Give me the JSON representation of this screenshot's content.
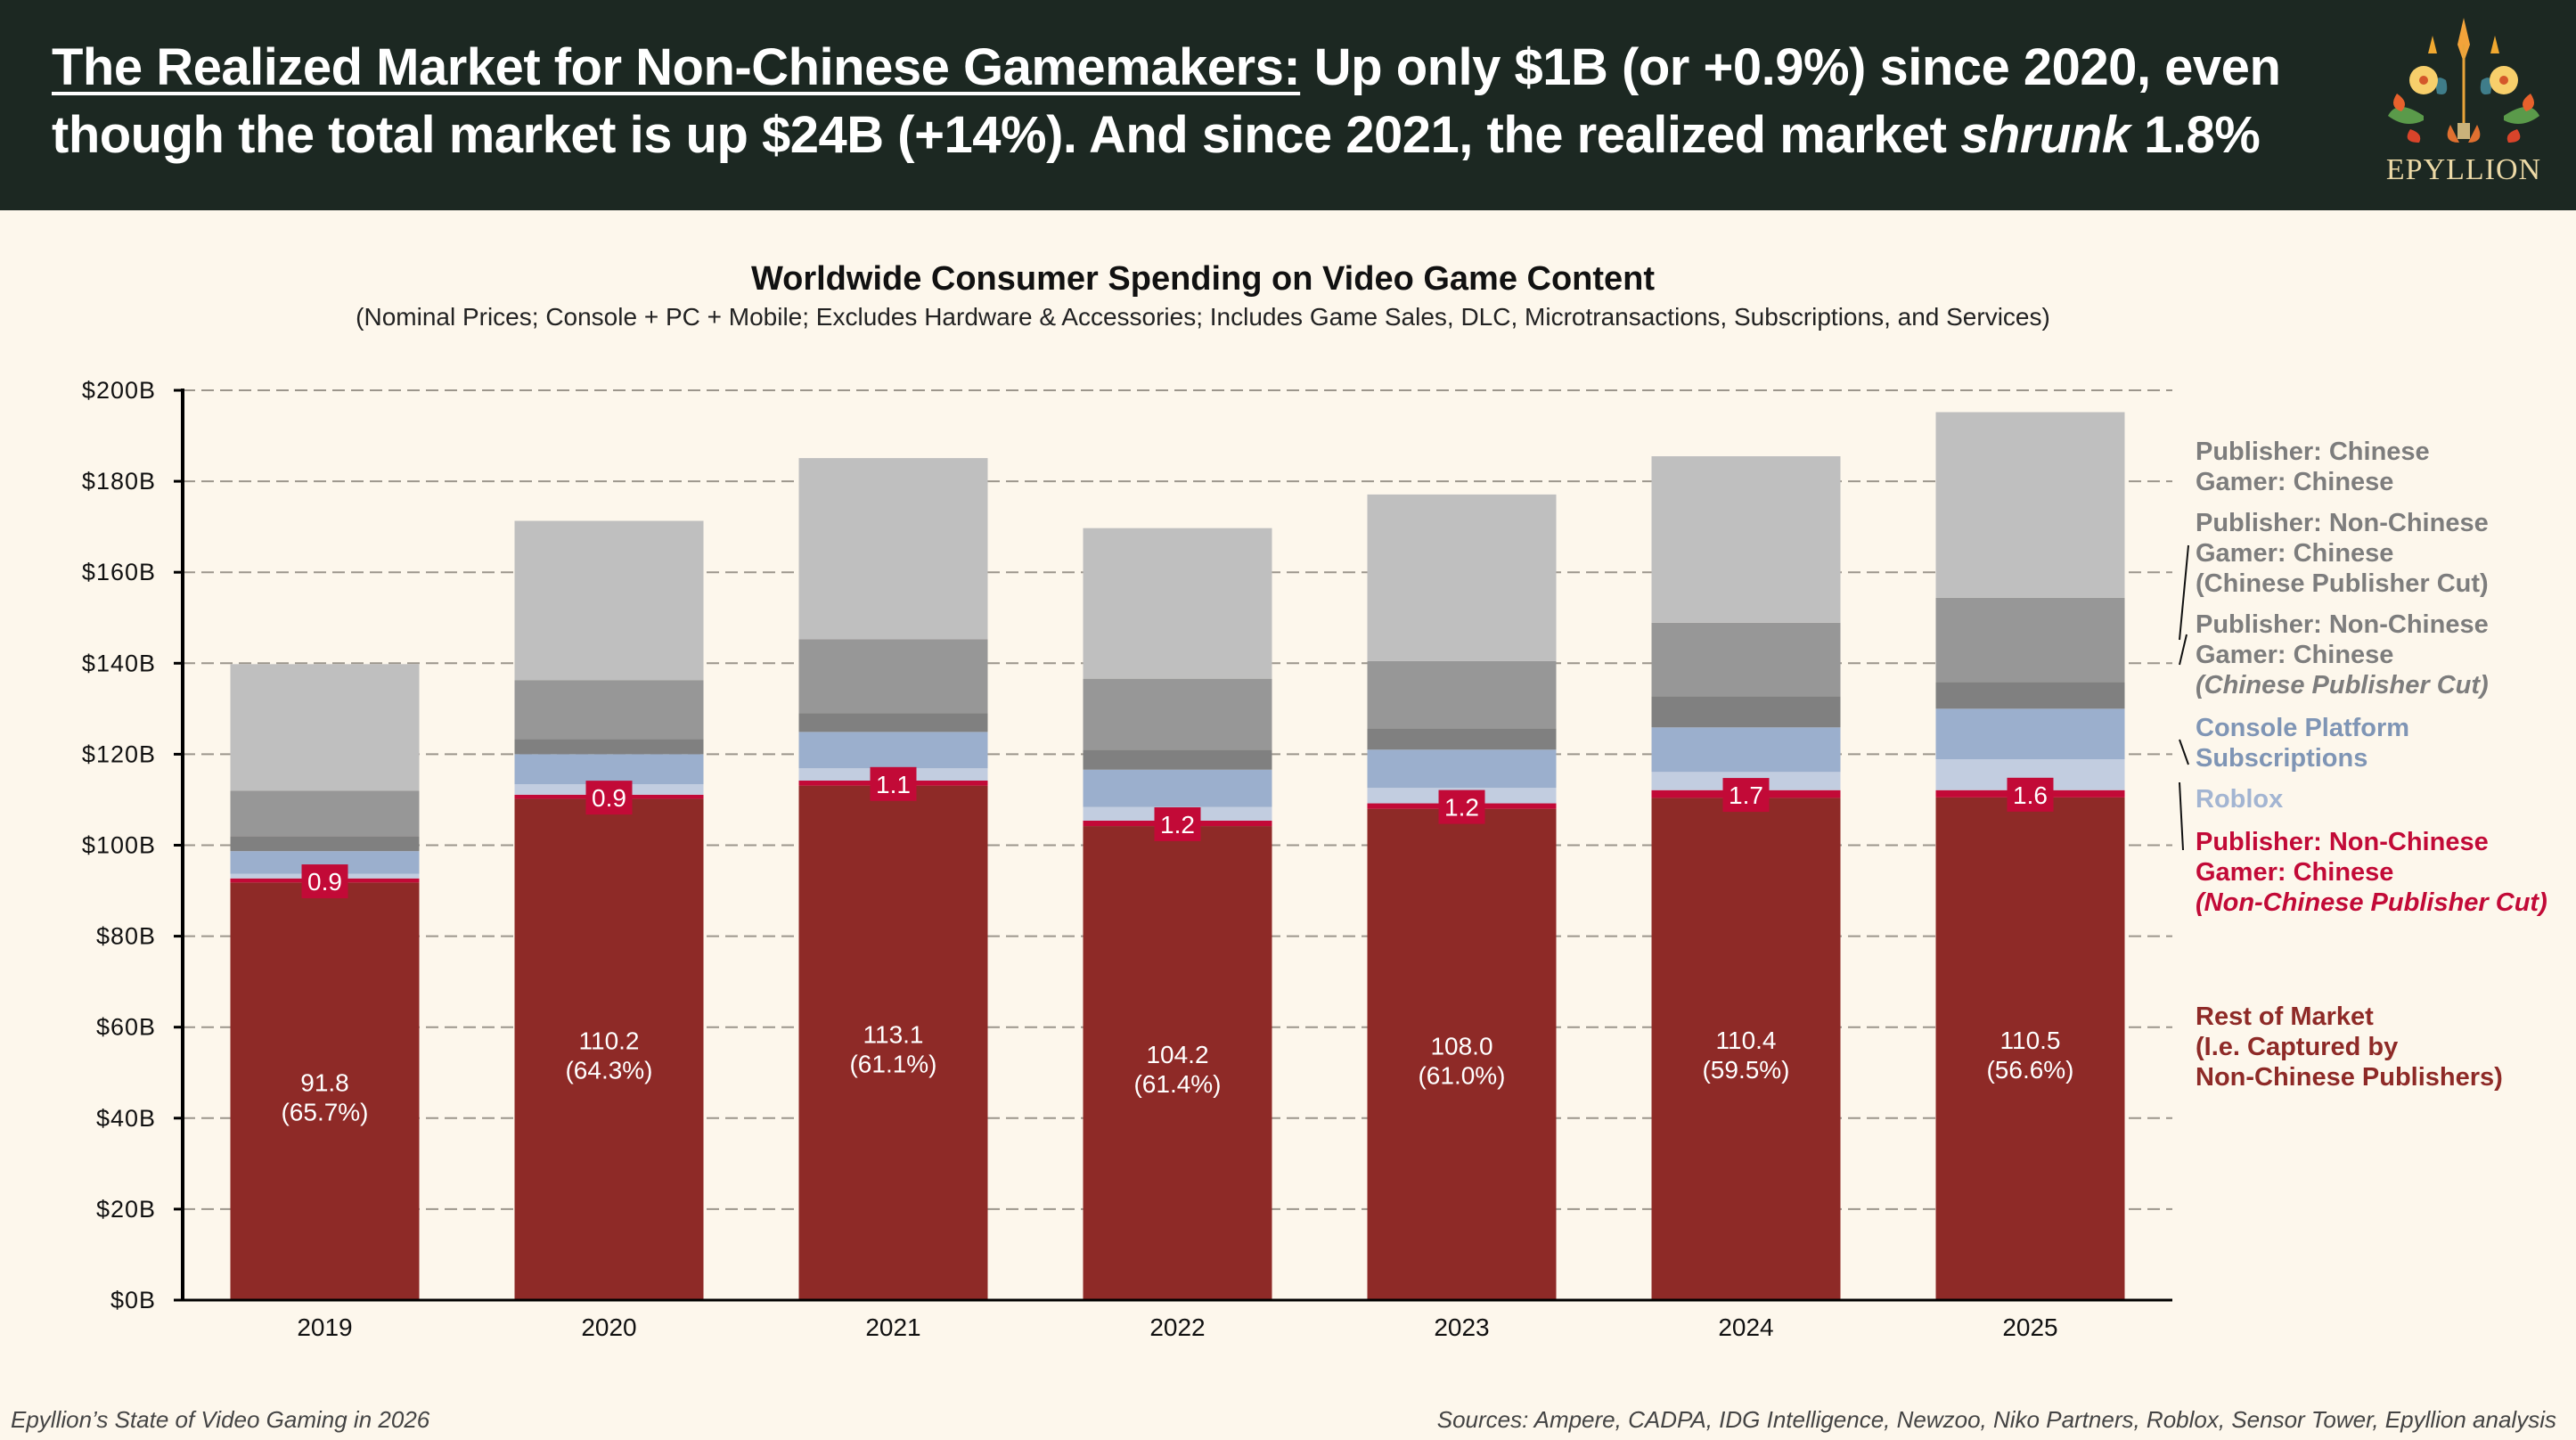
{
  "header": {
    "headline_underlined": "The Realized Market for Non-Chinese Gamemakers:",
    "headline_part1": " Up only $1B (or +0.9%) since 2020, even though the total market is up $24B (+14%). And since 2021, the realized market ",
    "headline_italic": "shrunk",
    "headline_part2": " 1.8%",
    "logo_text": "EPYLLION"
  },
  "footer": {
    "left": "Epyllion’s State of Video Gaming in 2026",
    "right": "Sources: Ampere, CADPA, IDG Intelligence, Newzoo, Niko Partners, Roblox, Sensor Tower, Epyllion analysis"
  },
  "colors": {
    "background": "#fdf7ec",
    "header_bg": "#1c2822",
    "rest_of_market": "#8e2a27",
    "nonchinese_pub_cut": "#c20a37",
    "roblox": "#c2cde0",
    "console_subs": "#9bafcd",
    "chinese_pub_cut_dark": "#808080",
    "chinese_pub_cut_mid": "#979797",
    "chinese_chinese": "#bfbfbf"
  },
  "chart_data": {
    "type": "bar",
    "stacked": true,
    "title": "Worldwide Consumer Spending on Video Game Content",
    "subtitle": "(Nominal Prices; Console + PC + Mobile; Excludes Hardware & Accessories; Includes Game Sales, DLC, Microtransactions, Subscriptions, and Services)",
    "xlabel": "",
    "ylabel": "",
    "categories": [
      "2019",
      "2020",
      "2021",
      "2022",
      "2023",
      "2024",
      "2025"
    ],
    "ylim": [
      0,
      200
    ],
    "yticks": [
      0,
      20,
      40,
      60,
      80,
      100,
      120,
      140,
      160,
      180,
      200
    ],
    "ytick_labels": [
      "$0B",
      "$20B",
      "$40B",
      "$60B",
      "$80B",
      "$100B",
      "$120B",
      "$140B",
      "$160B",
      "$180B",
      "$200B"
    ],
    "grid": "horizontal dashed",
    "legend_position": "right",
    "series": [
      {
        "name": "Rest of Market (I.e. Captured by Non-Chinese Publishers)",
        "color_key": "rest_of_market",
        "values": [
          91.8,
          110.2,
          113.1,
          104.2,
          108.0,
          110.4,
          110.5
        ],
        "share_labels": [
          "(65.7%)",
          "(64.3%)",
          "(61.1%)",
          "(61.4%)",
          "(61.0%)",
          "(59.5%)",
          "(56.6%)"
        ],
        "value_labels": [
          "91.8",
          "110.2",
          "113.1",
          "104.2",
          "108.0",
          "110.4",
          "110.5"
        ]
      },
      {
        "name": "Publisher: Non-Chinese / Gamer: Chinese (Non-Chinese Publisher Cut)",
        "color_key": "nonchinese_pub_cut",
        "values": [
          0.9,
          0.9,
          1.1,
          1.2,
          1.2,
          1.7,
          1.6
        ],
        "value_labels": [
          "0.9",
          "0.9",
          "1.1",
          "1.2",
          "1.2",
          "1.7",
          "1.6"
        ]
      },
      {
        "name": "Roblox",
        "color_key": "roblox",
        "values": [
          1.0,
          2.3,
          2.7,
          3.0,
          3.4,
          4.0,
          6.8
        ]
      },
      {
        "name": "Console Platform Subscriptions",
        "color_key": "console_subs",
        "values": [
          5.0,
          6.6,
          8.0,
          8.2,
          8.4,
          9.8,
          11.1
        ]
      },
      {
        "name": "Publisher: Non-Chinese / Gamer: Chinese (Chinese Publisher Cut)",
        "color_key": "chinese_pub_cut_dark",
        "values": [
          3.3,
          3.3,
          4.1,
          4.4,
          4.7,
          6.8,
          5.9
        ]
      },
      {
        "name": "Publisher: Non-Chinese / Gamer: Chinese (Chinese Publisher Cut)",
        "color_key": "chinese_pub_cut_mid",
        "values": [
          10.0,
          13.0,
          16.3,
          15.6,
          14.8,
          16.2,
          18.5
        ]
      },
      {
        "name": "Publisher: Chinese / Gamer: Chinese",
        "color_key": "chinese_chinese",
        "values": [
          27.8,
          35.0,
          39.8,
          33.1,
          36.6,
          36.6,
          40.8
        ]
      }
    ]
  },
  "legend": [
    {
      "lines": [
        "Publisher: Chinese",
        "Gamer: Chinese"
      ],
      "italic_last": false,
      "color": "#7d7d7d"
    },
    {
      "lines": [
        "Publisher: Non-Chinese",
        "Gamer: Chinese",
        "(Chinese Publisher Cut)"
      ],
      "italic_last": false,
      "color": "#7d7d7d"
    },
    {
      "lines": [
        "Publisher: Non-Chinese",
        "Gamer: Chinese",
        "(Chinese Publisher Cut)"
      ],
      "italic_last": true,
      "color": "#7d7d7d"
    },
    {
      "lines": [
        "Console Platform",
        "Subscriptions"
      ],
      "italic_last": false,
      "color": "#7f95b5"
    },
    {
      "lines": [
        "Roblox"
      ],
      "italic_last": false,
      "color": "#a3b5d2"
    },
    {
      "lines": [
        "Publisher: Non-Chinese",
        "Gamer: Chinese",
        "(Non-Chinese Publisher Cut)"
      ],
      "italic_last": true,
      "color": "#c20a37"
    },
    {
      "lines": [
        "Rest of Market",
        "(I.e. Captured by",
        "Non-Chinese Publishers)"
      ],
      "italic_last": false,
      "color": "#8e2a27"
    }
  ]
}
